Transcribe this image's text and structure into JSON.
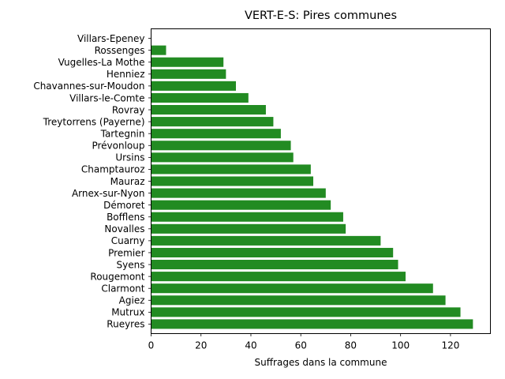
{
  "chart_data": {
    "type": "bar",
    "orientation": "horizontal",
    "title": "VERT-E-S: Pires communes",
    "xlabel": "Suffrages dans la commune",
    "ylabel": "",
    "xlim": [
      0,
      136
    ],
    "xticks": [
      0,
      20,
      40,
      60,
      80,
      100,
      120
    ],
    "grid": false,
    "bar_color": "#228b22",
    "categories": [
      "Rueyres",
      "Mutrux",
      "Agiez",
      "Clarmont",
      "Rougemont",
      "Syens",
      "Premier",
      "Cuarny",
      "Novalles",
      "Bofflens",
      "Démoret",
      "Arnex-sur-Nyon",
      "Mauraz",
      "Champtauroz",
      "Ursins",
      "Prévonloup",
      "Tartegnin",
      "Treytorrens (Payerne)",
      "Rovray",
      "Villars-le-Comte",
      "Chavannes-sur-Moudon",
      "Henniez",
      "Vugelles-La Mothe",
      "Rossenges",
      "Villars-Epeney"
    ],
    "values": [
      129,
      124,
      118,
      113,
      102,
      99,
      97,
      92,
      78,
      77,
      72,
      70,
      65,
      64,
      57,
      56,
      52,
      49,
      46,
      39,
      34,
      30,
      29,
      6,
      0
    ]
  }
}
